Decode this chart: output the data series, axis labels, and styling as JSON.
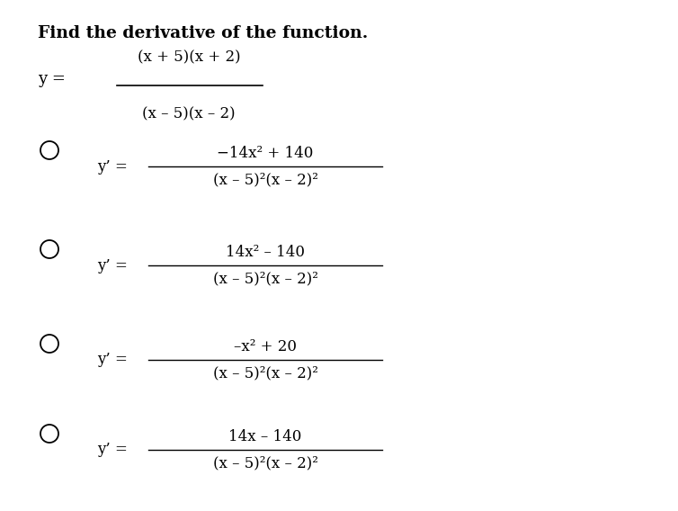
{
  "title": "Find the derivative of the function.",
  "background_color": "#ffffff",
  "text_color": "#000000",
  "font_family": "DejaVu Serif",
  "title_fontsize": 13.5,
  "title_fontweight": "bold",
  "function_numerator": "(x + 5)(x + 2)",
  "function_denominator": "(x – 5)(x – 2)",
  "options": [
    {
      "numerator": "−14x² + 140",
      "denominator": "(x – 5)²(x – 2)²"
    },
    {
      "numerator": "14x² – 140",
      "denominator": "(x – 5)²(x – 2)²"
    },
    {
      "numerator": "–x² + 20",
      "denominator": "(x – 5)²(x – 2)²"
    },
    {
      "numerator": "14x – 140",
      "denominator": "(x – 5)²(x – 2)²"
    }
  ]
}
